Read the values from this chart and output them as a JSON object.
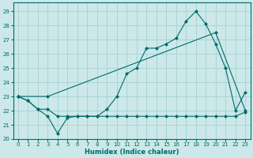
{
  "xlabel": "Humidex (Indice chaleur)",
  "bg_color": "#cce8e8",
  "grid_color": "#aad4d4",
  "line_color": "#006b6b",
  "xlim": [
    -0.5,
    23.5
  ],
  "ylim": [
    20.0,
    29.6
  ],
  "yticks": [
    20,
    21,
    22,
    23,
    24,
    25,
    26,
    27,
    28,
    29
  ],
  "xticks": [
    0,
    1,
    2,
    3,
    4,
    5,
    6,
    7,
    8,
    9,
    10,
    11,
    12,
    13,
    14,
    15,
    16,
    17,
    18,
    19,
    20,
    21,
    22,
    23
  ],
  "line1_x": [
    0,
    1,
    2,
    3,
    4,
    5,
    6,
    7,
    8,
    9,
    10,
    11,
    12,
    13,
    14,
    15,
    16,
    17,
    18,
    19,
    20,
    21,
    22,
    23
  ],
  "line1_y": [
    23.0,
    22.7,
    22.1,
    21.6,
    20.4,
    21.5,
    21.6,
    21.6,
    21.6,
    22.1,
    23.0,
    24.6,
    25.0,
    26.4,
    26.4,
    26.7,
    27.1,
    28.3,
    29.0,
    28.1,
    26.7,
    25.0,
    22.0,
    23.3
  ],
  "line2_x": [
    0,
    1,
    2,
    3,
    4,
    5,
    6,
    7,
    8,
    9,
    10,
    11,
    12,
    13,
    14,
    15,
    16,
    17,
    18,
    19,
    20,
    21,
    22,
    23
  ],
  "line2_y": [
    23.0,
    22.7,
    22.1,
    22.1,
    21.6,
    21.6,
    21.6,
    21.6,
    21.6,
    21.6,
    21.6,
    21.6,
    21.6,
    21.6,
    21.6,
    21.6,
    21.6,
    21.6,
    21.6,
    21.6,
    21.6,
    21.6,
    21.6,
    21.9
  ],
  "line3_x": [
    0,
    3,
    20,
    23
  ],
  "line3_y": [
    23.0,
    23.0,
    27.5,
    22.0
  ]
}
